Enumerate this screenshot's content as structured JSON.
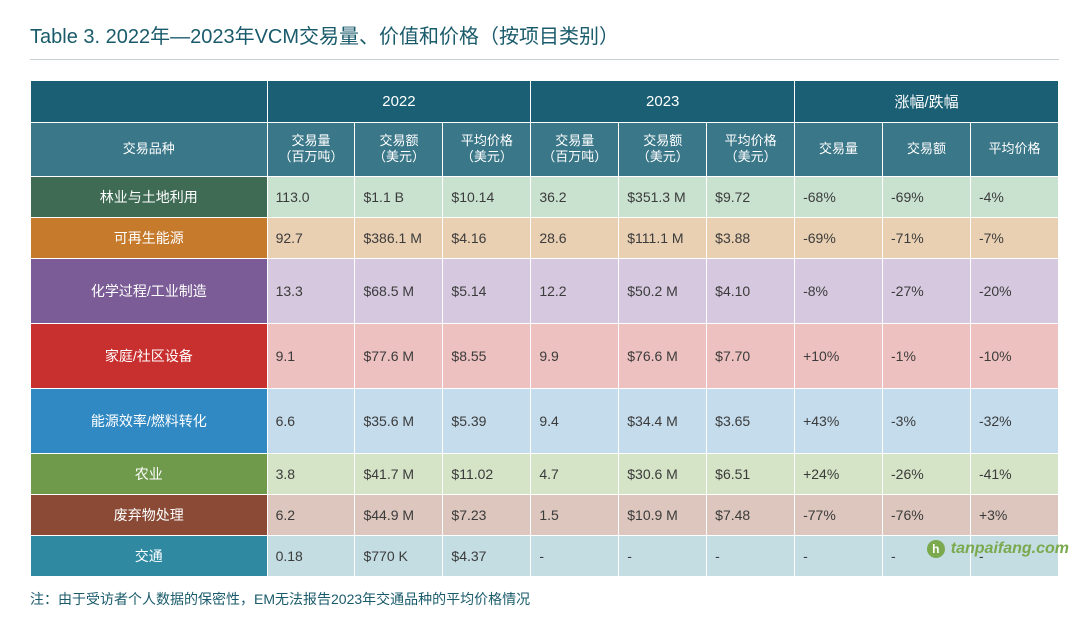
{
  "title": "Table 3. 2022年—2023年VCM交易量、价值和价格（按项目类别）",
  "header_colors": {
    "top_bg": "#1a5f74",
    "sub_bg": "#3a7788"
  },
  "group_headers": [
    "2022",
    "2023",
    "涨幅/跌幅"
  ],
  "sub_headers": {
    "category": "交易品种",
    "y2022": [
      "交易量\n（百万吨）",
      "交易额\n（美元）",
      "平均价格\n（美元）"
    ],
    "y2023": [
      "交易量\n（百万吨）",
      "交易额\n（美元）",
      "平均价格\n（美元）"
    ],
    "change": [
      "交易量",
      "交易额",
      "平均价格"
    ]
  },
  "rows": [
    {
      "category": "林业与土地利用",
      "cat_bg": "#3f6b55",
      "row_bg": "#c9e2d0",
      "y2022": [
        "113.0",
        "$1.1 B",
        "$10.14"
      ],
      "y2023": [
        "36.2",
        "$351.3 M",
        "$9.72"
      ],
      "change": [
        "-68%",
        "-69%",
        "-4%"
      ]
    },
    {
      "category": "可再生能源",
      "cat_bg": "#c67a2c",
      "row_bg": "#e9d0b3",
      "y2022": [
        "92.7",
        "$386.1 M",
        "$4.16"
      ],
      "y2023": [
        "28.6",
        "$111.1 M",
        "$3.88"
      ],
      "change": [
        "-69%",
        "-71%",
        "-7%"
      ]
    },
    {
      "category": "化学过程/工业制造",
      "cat_bg": "#7b5c96",
      "row_bg": "#d6c9df",
      "y2022": [
        "13.3",
        "$68.5 M",
        "$5.14"
      ],
      "y2023": [
        "12.2",
        "$50.2 M",
        "$4.10"
      ],
      "change": [
        "-8%",
        "-27%",
        "-20%"
      ],
      "tall": true
    },
    {
      "category": "家庭/社区设备",
      "cat_bg": "#c8302f",
      "row_bg": "#eec1c1",
      "y2022": [
        "9.1",
        "$77.6 M",
        "$8.55"
      ],
      "y2023": [
        "9.9",
        "$76.6 M",
        "$7.70"
      ],
      "change": [
        "+10%",
        "-1%",
        "-10%"
      ],
      "tall": true
    },
    {
      "category": "能源效率/燃料转化",
      "cat_bg": "#3089c3",
      "row_bg": "#c4dcec",
      "y2022": [
        "6.6",
        "$35.6 M",
        "$5.39"
      ],
      "y2023": [
        "9.4",
        "$34.4 M",
        "$3.65"
      ],
      "change": [
        "+43%",
        "-3%",
        "-32%"
      ],
      "tall": true
    },
    {
      "category": "农业",
      "cat_bg": "#6f9a4b",
      "row_bg": "#d5e3c6",
      "y2022": [
        "3.8",
        "$41.7 M",
        "$11.02"
      ],
      "y2023": [
        "4.7",
        "$30.6 M",
        "$6.51"
      ],
      "change": [
        "+24%",
        "-26%",
        "-41%"
      ]
    },
    {
      "category": "废弃物处理",
      "cat_bg": "#8a4a36",
      "row_bg": "#dcc6bd",
      "y2022": [
        "6.2",
        "$44.9 M",
        "$7.23"
      ],
      "y2023": [
        "1.5",
        "$10.9 M",
        "$7.48"
      ],
      "change": [
        "-77%",
        "-76%",
        "+3%"
      ]
    },
    {
      "category": "交通",
      "cat_bg": "#2f8aa1",
      "row_bg": "#c4dde3",
      "y2022": [
        "0.18",
        "$770 K",
        "$4.37"
      ],
      "y2023": [
        "-",
        "-",
        "-"
      ],
      "change": [
        "-",
        "-",
        "-"
      ]
    }
  ],
  "footnote": "注：由于受访者个人数据的保密性，EM无法报告2023年交通品种的平均价格情况",
  "watermark": {
    "icon": "h",
    "text": "tanpaifang.com"
  }
}
